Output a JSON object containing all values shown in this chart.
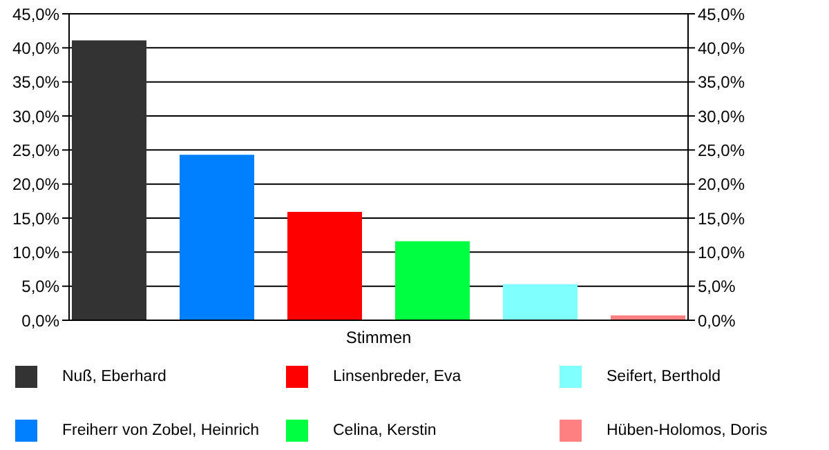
{
  "chart_data": {
    "type": "bar",
    "xlabel": "Stimmen",
    "categories": [
      null
    ],
    "series": [
      {
        "name": "Nuß, Eberhard",
        "color": "#333333",
        "values": [
          41.1
        ]
      },
      {
        "name": "Freiherr von Zobel, Heinrich",
        "color": "#0080ff",
        "values": [
          24.3
        ]
      },
      {
        "name": "Linsenbreder, Eva",
        "color": "#ff0000",
        "values": [
          15.9
        ]
      },
      {
        "name": "Celina, Kerstin",
        "color": "#00ff40",
        "values": [
          11.6
        ]
      },
      {
        "name": "Seifert, Berthold",
        "color": "#80ffff",
        "values": [
          5.3
        ]
      },
      {
        "name": "Hüben-Holomos, Doris",
        "color": "#ff8080",
        "values": [
          0.7
        ]
      }
    ],
    "ylim": [
      0,
      45
    ],
    "yticks": [
      {
        "value": 0,
        "label": "0,0%"
      },
      {
        "value": 5,
        "label": "5,0%"
      },
      {
        "value": 10,
        "label": "10,0%"
      },
      {
        "value": 15,
        "label": "15,0%"
      },
      {
        "value": 20,
        "label": "20,0%"
      },
      {
        "value": 25,
        "label": "25,0%"
      },
      {
        "value": 30,
        "label": "30,0%"
      },
      {
        "value": 35,
        "label": "35,0%"
      },
      {
        "value": 40,
        "label": "40,0%"
      },
      {
        "value": 45,
        "label": "45,0%"
      }
    ],
    "y2lim": [
      0,
      45
    ],
    "y2ticks": [
      {
        "value": 0,
        "label": "0,0%"
      },
      {
        "value": 5,
        "label": "5,0%"
      },
      {
        "value": 10,
        "label": "10,0%"
      },
      {
        "value": 15,
        "label": "15,0%"
      },
      {
        "value": 20,
        "label": "20,0%"
      },
      {
        "value": 25,
        "label": "25,0%"
      },
      {
        "value": 30,
        "label": "30,0%"
      },
      {
        "value": 35,
        "label": "35,0%"
      },
      {
        "value": 40,
        "label": "40,0%"
      },
      {
        "value": 45,
        "label": "45,0%"
      }
    ],
    "grid": "y",
    "legend": "bottom"
  }
}
